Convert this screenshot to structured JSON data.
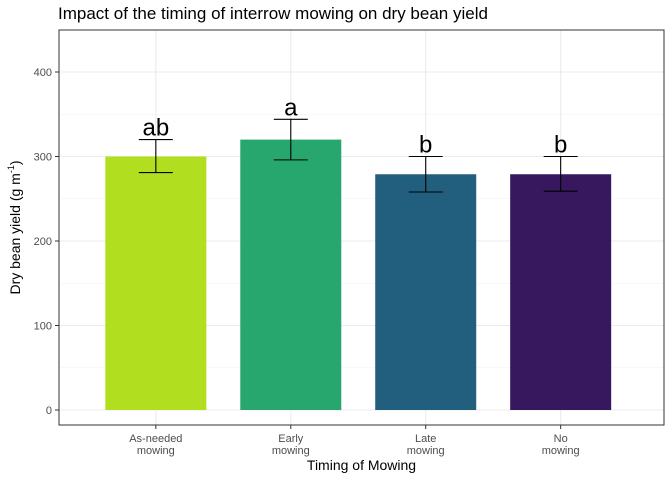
{
  "chart_data": {
    "type": "bar",
    "title": "Impact of the timing of interrow mowing on dry bean yield",
    "xlabel": "Timing of Mowing",
    "ylabel": "Dry bean yield (g m",
    "ylabel_sup": "-1",
    "ylabel_close": ")",
    "categories": [
      [
        "As-needed",
        "mowing"
      ],
      [
        "Early",
        "mowing"
      ],
      [
        "Late",
        "mowing"
      ],
      [
        "No",
        "mowing"
      ]
    ],
    "values": [
      300,
      320,
      279,
      279
    ],
    "error_low": [
      281,
      296,
      258,
      259
    ],
    "error_high": [
      320,
      344,
      300,
      300
    ],
    "significance": [
      "ab",
      "a",
      "b",
      "b"
    ],
    "bar_colors": [
      "#b1de1f",
      "#27a76e",
      "#225f7e",
      "#37185f"
    ],
    "ylim": [
      0,
      450
    ],
    "yticks": [
      0,
      100,
      200,
      300,
      400
    ],
    "grid": true
  }
}
